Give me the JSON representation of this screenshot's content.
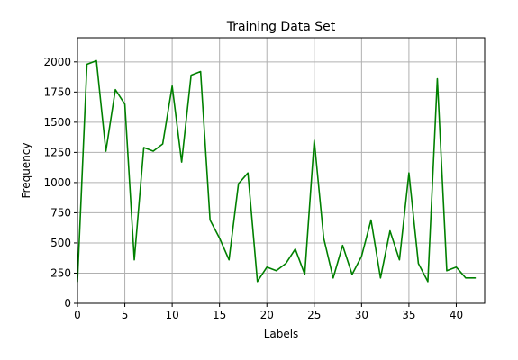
{
  "chart_data": {
    "type": "line",
    "title": "Training Data Set",
    "xlabel": "Labels",
    "ylabel": "Frequency",
    "xlim": [
      0,
      43
    ],
    "ylim": [
      0,
      2200
    ],
    "xticks": [
      0,
      5,
      10,
      15,
      20,
      25,
      30,
      35,
      40
    ],
    "yticks": [
      0,
      250,
      500,
      750,
      1000,
      1250,
      1500,
      1750,
      2000
    ],
    "grid": true,
    "series": [
      {
        "color": "#008000",
        "x": [
          0,
          1,
          2,
          3,
          4,
          5,
          6,
          7,
          8,
          9,
          10,
          11,
          12,
          13,
          14,
          15,
          16,
          17,
          18,
          19,
          20,
          21,
          22,
          23,
          24,
          25,
          26,
          27,
          28,
          29,
          30,
          31,
          32,
          33,
          34,
          35,
          36,
          37,
          38,
          39,
          40,
          41,
          42
        ],
        "values": [
          180,
          1980,
          2010,
          1260,
          1770,
          1650,
          360,
          1290,
          1260,
          1320,
          1800,
          1170,
          1890,
          1920,
          690,
          540,
          360,
          990,
          1080,
          180,
          300,
          270,
          330,
          450,
          240,
          1350,
          540,
          210,
          480,
          240,
          390,
          690,
          210,
          600,
          360,
          1080,
          330,
          180,
          1860,
          270,
          300,
          210,
          210
        ]
      }
    ]
  }
}
